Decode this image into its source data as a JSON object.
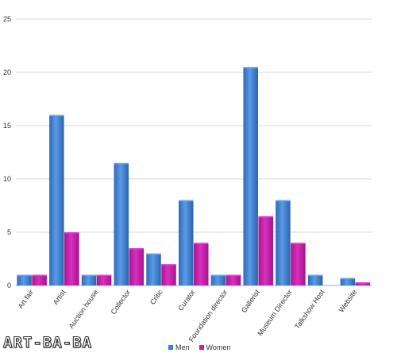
{
  "chart_data": {
    "type": "bar",
    "categories": [
      "Art fair",
      "Artist",
      "Auction house",
      "Collector",
      "Critic",
      "Curator",
      "Foundation director",
      "Gallerist",
      "Museum Director",
      "Talkshow Host",
      "Website"
    ],
    "series": [
      {
        "name": "Men",
        "values": [
          1,
          16,
          1,
          11.5,
          3,
          8,
          1,
          20.5,
          8,
          1,
          0.7
        ],
        "color": "#3a7fd5"
      },
      {
        "name": "Women",
        "values": [
          1,
          5,
          1,
          3.5,
          2,
          4,
          1,
          6.5,
          4,
          0,
          0.3
        ],
        "color": "#cc1fb0"
      }
    ],
    "ylim": [
      0,
      25
    ],
    "yticks": [
      "0",
      "5",
      "10",
      "15",
      "20",
      "25"
    ],
    "grid": true,
    "legend_position": "bottom"
  },
  "watermark": "ART-BA-BA"
}
